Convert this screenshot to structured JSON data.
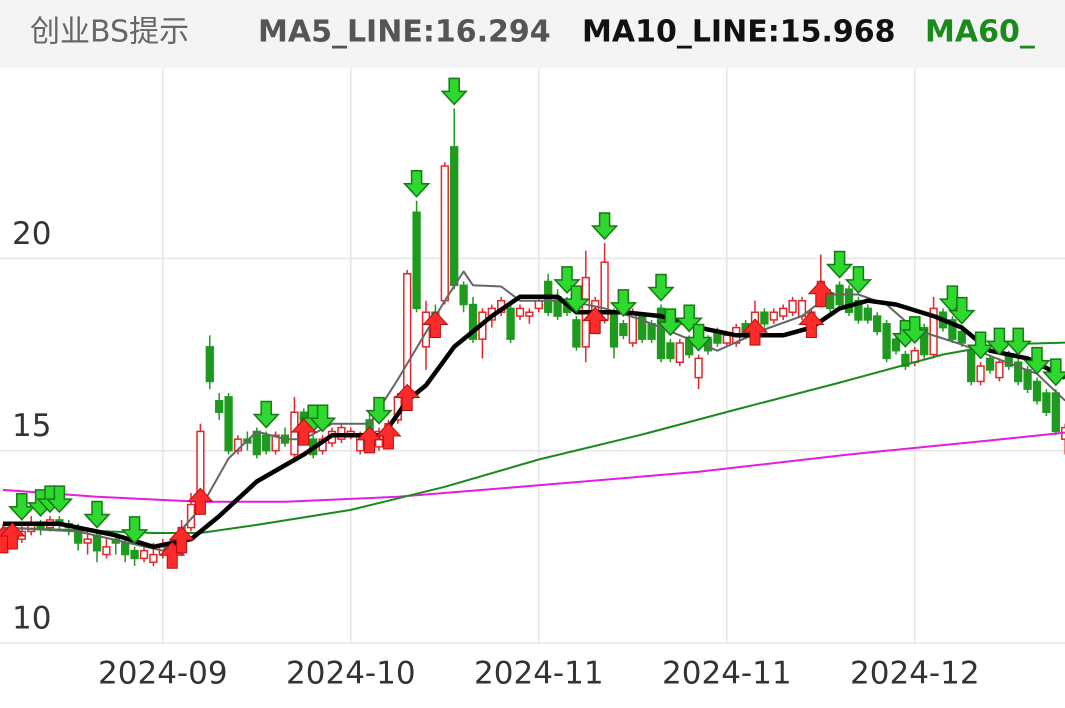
{
  "chart_data": {
    "type": "candlestick",
    "title": "创业BS提示",
    "legend": [
      {
        "text": "MA5_LINE:16.294",
        "color": "#555555"
      },
      {
        "text": "MA10_LINE:15.968",
        "color": "#111111"
      },
      {
        "text": "MA60_",
        "color": "#1a8a1a"
      }
    ],
    "up_color": "#e3262b",
    "down_color": "#1e9a1e",
    "ylim": [
      10,
      24.95
    ],
    "yticks": [
      10,
      15,
      20
    ],
    "xlim": [
      0,
      113
    ],
    "xticks": [
      {
        "value": 17,
        "label": "2024-09"
      },
      {
        "value": 37,
        "label": "2024-10"
      },
      {
        "value": 57,
        "label": "2024-11"
      },
      {
        "value": 77,
        "label": "2024-11"
      },
      {
        "value": 97,
        "label": "2024-12"
      }
    ],
    "grid": true,
    "candles": [
      [
        12.7,
        13.1,
        12.5,
        12.9
      ],
      [
        12.9,
        13.0,
        12.6,
        12.8
      ],
      [
        12.7,
        13.1,
        12.6,
        12.9
      ],
      [
        12.9,
        13.3,
        12.8,
        13.1
      ],
      [
        13.1,
        13.2,
        12.8,
        13.0
      ],
      [
        13.0,
        13.3,
        12.9,
        13.2
      ],
      [
        13.2,
        13.3,
        12.9,
        13.1
      ],
      [
        13.1,
        13.2,
        12.8,
        13.0
      ],
      [
        13.0,
        13.1,
        12.4,
        12.6
      ],
      [
        12.6,
        12.9,
        12.3,
        12.7
      ],
      [
        12.8,
        12.9,
        12.1,
        12.4
      ],
      [
        12.3,
        12.7,
        12.2,
        12.5
      ],
      [
        12.7,
        12.8,
        12.3,
        12.6
      ],
      [
        12.6,
        12.7,
        12.1,
        12.3
      ],
      [
        12.4,
        12.5,
        12.0,
        12.2
      ],
      [
        12.2,
        12.6,
        12.1,
        12.4
      ],
      [
        12.1,
        12.6,
        12.0,
        12.3
      ],
      [
        12.3,
        12.7,
        12.2,
        12.5
      ],
      [
        12.2,
        12.7,
        12.1,
        12.6
      ],
      [
        12.6,
        13.2,
        12.5,
        13.0
      ],
      [
        13.0,
        13.9,
        12.9,
        13.6
      ],
      [
        13.7,
        15.7,
        13.5,
        15.5
      ],
      [
        17.7,
        18.0,
        16.6,
        16.8
      ],
      [
        16.3,
        16.5,
        15.8,
        16.0
      ],
      [
        16.4,
        16.5,
        14.9,
        15.0
      ],
      [
        15.0,
        15.4,
        14.9,
        15.3
      ],
      [
        15.3,
        15.5,
        15.0,
        15.2
      ],
      [
        15.5,
        15.6,
        14.8,
        14.9
      ],
      [
        15.4,
        15.5,
        14.9,
        15.0
      ],
      [
        15.0,
        15.5,
        14.9,
        15.4
      ],
      [
        15.4,
        15.6,
        15.1,
        15.2
      ],
      [
        14.9,
        16.4,
        14.8,
        16.0
      ],
      [
        16.0,
        16.1,
        15.3,
        15.4
      ],
      [
        15.3,
        15.4,
        14.8,
        14.9
      ],
      [
        15.0,
        15.4,
        14.9,
        15.3
      ],
      [
        15.2,
        15.6,
        15.1,
        15.5
      ],
      [
        15.3,
        15.7,
        15.2,
        15.6
      ],
      [
        15.4,
        15.6,
        15.3,
        15.5
      ],
      [
        15.0,
        15.5,
        14.9,
        15.4
      ],
      [
        15.8,
        16.0,
        15.1,
        15.2
      ],
      [
        15.1,
        15.6,
        15.0,
        15.5
      ],
      [
        15.3,
        15.8,
        15.2,
        15.7
      ],
      [
        15.8,
        16.5,
        15.7,
        16.4
      ],
      [
        16.3,
        19.7,
        16.2,
        19.6
      ],
      [
        21.2,
        21.5,
        18.6,
        18.7
      ],
      [
        17.7,
        18.9,
        17.1,
        18.6
      ],
      [
        18.6,
        18.8,
        18.1,
        18.2
      ],
      [
        18.9,
        22.5,
        18.8,
        22.4
      ],
      [
        22.9,
        23.9,
        19.2,
        19.3
      ],
      [
        19.3,
        19.4,
        18.6,
        18.8
      ],
      [
        18.8,
        19.0,
        17.8,
        17.9
      ],
      [
        17.9,
        18.7,
        17.4,
        18.6
      ],
      [
        18.4,
        18.8,
        18.2,
        18.7
      ],
      [
        18.6,
        19.0,
        18.5,
        18.9
      ],
      [
        18.7,
        18.9,
        17.8,
        17.9
      ],
      [
        18.5,
        18.8,
        18.4,
        18.7
      ],
      [
        18.5,
        18.7,
        18.3,
        18.6
      ],
      [
        18.7,
        19.0,
        18.6,
        18.9
      ],
      [
        19.4,
        19.6,
        18.5,
        18.6
      ],
      [
        19.0,
        19.2,
        18.4,
        18.5
      ],
      [
        18.8,
        19.0,
        18.5,
        18.6
      ],
      [
        18.4,
        18.5,
        17.6,
        17.7
      ],
      [
        17.7,
        20.2,
        17.3,
        19.5
      ],
      [
        18.3,
        19.0,
        18.2,
        18.9
      ],
      [
        18.4,
        20.4,
        18.3,
        19.9
      ],
      [
        18.6,
        18.7,
        17.4,
        17.7
      ],
      [
        18.3,
        18.4,
        17.9,
        18.0
      ],
      [
        17.8,
        18.7,
        17.7,
        18.6
      ],
      [
        18.5,
        18.6,
        17.8,
        17.9
      ],
      [
        18.3,
        18.4,
        17.8,
        17.9
      ],
      [
        18.7,
        18.8,
        17.3,
        17.4
      ],
      [
        17.8,
        17.9,
        17.3,
        17.4
      ],
      [
        17.3,
        17.9,
        17.2,
        17.8
      ],
      [
        17.9,
        18.0,
        17.4,
        17.5
      ],
      [
        16.9,
        17.5,
        16.6,
        17.4
      ],
      [
        17.9,
        18.0,
        17.5,
        17.6
      ],
      [
        18.1,
        18.2,
        17.7,
        17.8
      ],
      [
        17.8,
        18.1,
        17.7,
        18.0
      ],
      [
        17.8,
        18.3,
        17.7,
        18.2
      ],
      [
        18.3,
        18.4,
        17.9,
        18.0
      ],
      [
        18.0,
        18.9,
        17.9,
        18.6
      ],
      [
        18.6,
        18.7,
        18.2,
        18.3
      ],
      [
        18.4,
        18.7,
        18.3,
        18.6
      ],
      [
        18.5,
        18.8,
        18.4,
        18.7
      ],
      [
        18.6,
        19.0,
        18.5,
        18.9
      ],
      [
        18.5,
        19.0,
        18.4,
        18.9
      ],
      [
        18.2,
        18.7,
        18.1,
        18.6
      ],
      [
        19.0,
        20.1,
        18.9,
        19.4
      ],
      [
        19.1,
        19.2,
        18.6,
        18.7
      ],
      [
        19.3,
        19.4,
        18.7,
        18.8
      ],
      [
        19.2,
        19.3,
        18.5,
        18.6
      ],
      [
        18.9,
        19.0,
        18.3,
        18.4
      ],
      [
        18.7,
        18.8,
        18.3,
        18.4
      ],
      [
        18.5,
        18.6,
        18.0,
        18.1
      ],
      [
        18.3,
        18.4,
        17.3,
        17.4
      ],
      [
        17.9,
        18.0,
        17.5,
        17.6
      ],
      [
        17.5,
        17.6,
        17.1,
        17.2
      ],
      [
        17.3,
        17.7,
        17.2,
        17.6
      ],
      [
        18.2,
        18.3,
        17.4,
        17.5
      ],
      [
        17.5,
        19.0,
        17.4,
        18.7
      ],
      [
        18.6,
        18.7,
        18.1,
        18.2
      ],
      [
        18.4,
        18.5,
        17.8,
        17.9
      ],
      [
        18.1,
        18.2,
        17.7,
        17.8
      ],
      [
        17.6,
        17.7,
        16.7,
        16.8
      ],
      [
        16.8,
        17.3,
        16.7,
        17.2
      ],
      [
        17.4,
        17.5,
        17.0,
        17.1
      ],
      [
        16.9,
        17.4,
        16.8,
        17.3
      ],
      [
        17.5,
        17.6,
        17.1,
        17.2
      ],
      [
        17.3,
        17.4,
        16.7,
        16.8
      ],
      [
        17.1,
        17.2,
        16.5,
        16.6
      ],
      [
        16.8,
        16.9,
        16.2,
        16.3
      ],
      [
        16.5,
        16.6,
        15.9,
        16.0
      ],
      [
        16.5,
        16.6,
        15.4,
        15.5
      ],
      [
        15.3,
        15.7,
        14.9,
        15.6
      ]
    ],
    "lines": [
      {
        "color": "#e41ce4",
        "width": 2,
        "x": [
          0,
          10,
          21,
          30,
          42,
          57,
          74,
          90,
          106,
          113
        ],
        "values": [
          13.98,
          13.8,
          13.67,
          13.67,
          13.8,
          14.1,
          14.45,
          14.9,
          15.29,
          15.47
        ]
      },
      {
        "color": "#1a8a1a",
        "width": 2,
        "x": [
          0,
          16,
          21,
          27,
          37,
          47,
          57,
          68,
          78,
          89,
          100,
          106,
          113
        ],
        "values": [
          13.0,
          12.86,
          12.86,
          13.07,
          13.46,
          14.06,
          14.77,
          15.42,
          16.07,
          16.77,
          17.5,
          17.76,
          17.81
        ]
      },
      {
        "color": "#666666",
        "width": 2,
        "x": [
          0,
          8,
          17,
          21,
          24,
          27,
          30,
          32,
          35,
          39,
          42,
          47,
          49,
          50,
          53,
          55,
          60,
          64,
          68,
          72,
          76,
          81,
          85,
          88,
          91,
          94,
          97,
          102,
          106,
          110,
          113
        ],
        "values": [
          13.0,
          12.9,
          12.4,
          13.5,
          14.8,
          15.5,
          15.3,
          15.3,
          15.7,
          15.7,
          16.85,
          18.9,
          19.66,
          19.3,
          19.27,
          18.9,
          18.9,
          18.7,
          18.4,
          18.0,
          17.6,
          18.15,
          18.5,
          19.06,
          19.06,
          18.8,
          18.15,
          17.76,
          17.37,
          17.0,
          16.3
        ]
      },
      {
        "color": "#000000",
        "width": 4.5,
        "x": [
          0,
          6,
          12,
          16,
          20,
          23,
          27,
          32,
          35,
          40,
          41,
          43,
          45,
          48,
          52,
          55,
          59,
          61,
          66,
          70,
          74,
          78,
          83,
          86,
          89,
          92,
          95,
          99,
          102,
          105,
          109,
          113
        ],
        "values": [
          13.1,
          13.1,
          12.8,
          12.5,
          12.7,
          13.3,
          14.2,
          14.9,
          15.4,
          15.4,
          15.6,
          16.3,
          16.7,
          17.7,
          18.5,
          19.0,
          19.0,
          18.6,
          18.6,
          18.5,
          18.2,
          18.0,
          18.0,
          18.2,
          18.7,
          18.9,
          18.8,
          18.5,
          18.2,
          17.6,
          17.4,
          16.9
        ]
      }
    ],
    "sell_signals": [
      2,
      4,
      5,
      6,
      10,
      14,
      28,
      33,
      34,
      40,
      44,
      48,
      60,
      61,
      64,
      66,
      70,
      71,
      73,
      74,
      89,
      91,
      96,
      97,
      101,
      102,
      104,
      106,
      108,
      110,
      112
    ],
    "buy_signals": [
      0,
      1,
      18,
      19,
      21,
      32,
      39,
      41,
      43,
      46,
      63,
      80,
      86,
      87
    ]
  }
}
